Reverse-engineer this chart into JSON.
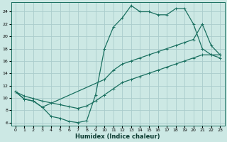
{
  "xlabel": "Humidex (Indice chaleur)",
  "bg_color": "#cce8e4",
  "grid_color": "#aacccc",
  "line_color": "#1a7060",
  "xlim": [
    -0.5,
    23.5
  ],
  "ylim": [
    5.5,
    25.5
  ],
  "yticks": [
    6,
    8,
    10,
    12,
    14,
    16,
    18,
    20,
    22,
    24
  ],
  "xticks": [
    0,
    1,
    2,
    3,
    4,
    5,
    6,
    7,
    8,
    9,
    10,
    11,
    12,
    13,
    14,
    15,
    16,
    17,
    18,
    19,
    20,
    21,
    22,
    23
  ],
  "line1_x": [
    0,
    1,
    2,
    3,
    4,
    5,
    6,
    7,
    8,
    9,
    10,
    11,
    12,
    13,
    14,
    15,
    16,
    17,
    18,
    19,
    20,
    21,
    22,
    23
  ],
  "line1_y": [
    11,
    9.8,
    9.5,
    8.5,
    7.0,
    6.7,
    6.2,
    6.0,
    6.3,
    10.5,
    18.0,
    21.5,
    23.0,
    25.0,
    24.0,
    24.0,
    23.5,
    23.5,
    24.5,
    24.5,
    22.0,
    18.0,
    17.0,
    17.0
  ],
  "line2_x": [
    0,
    1,
    2,
    3,
    4,
    5,
    6,
    7,
    8,
    9,
    10,
    11,
    12,
    13,
    14,
    15,
    16,
    17,
    18,
    19,
    20,
    21,
    22,
    23
  ],
  "line2_y": [
    11.0,
    10.3,
    9.9,
    9.5,
    9.2,
    8.9,
    8.6,
    8.3,
    8.7,
    9.5,
    10.5,
    11.5,
    12.5,
    13.0,
    13.5,
    14.0,
    14.5,
    15.0,
    15.5,
    16.0,
    16.5,
    17.0,
    17.0,
    16.5
  ],
  "line3_x": [
    0,
    1,
    2,
    3,
    10,
    11,
    12,
    13,
    14,
    15,
    16,
    17,
    18,
    19,
    20,
    21,
    22,
    23
  ],
  "line3_y": [
    11,
    9.8,
    9.5,
    8.5,
    13.0,
    14.5,
    15.5,
    16.0,
    16.5,
    17.0,
    17.5,
    18.0,
    18.5,
    19.0,
    19.5,
    22.0,
    18.5,
    17.0
  ]
}
